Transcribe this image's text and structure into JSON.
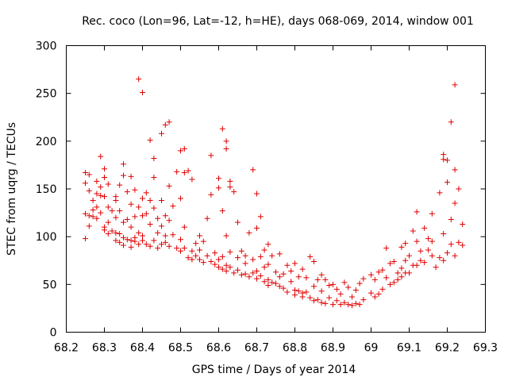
{
  "chart_data": {
    "type": "scatter",
    "title": "Rec. coco (Lon=96, Lat=-12, h=HE), days 068-069, 2014, window 001",
    "xlabel": "GPS time / Days of year 2014",
    "ylabel": "STEC from uqrg / TECUs",
    "xlim": [
      68.2,
      69.3
    ],
    "ylim": [
      0,
      300
    ],
    "x_ticks": [
      68.2,
      68.3,
      68.4,
      68.5,
      68.6,
      68.7,
      68.8,
      68.9,
      69.0,
      69.1,
      69.2,
      69.3
    ],
    "x_tick_labels": [
      "68.2",
      "68.3",
      "68.4",
      "68.5",
      "68.6",
      "68.7",
      "68.8",
      "68.9",
      "69",
      "69.1",
      "69.2",
      "69.3"
    ],
    "y_ticks": [
      0,
      50,
      100,
      150,
      200,
      250,
      300
    ],
    "y_tick_labels": [
      "0",
      "50",
      "100",
      "150",
      "200",
      "250",
      "300"
    ],
    "grid": false,
    "marker": "+",
    "color": "#e00000",
    "series": [
      {
        "name": "STEC",
        "points": [
          [
            68.25,
            167
          ],
          [
            68.25,
            156
          ],
          [
            68.25,
            124
          ],
          [
            68.25,
            98
          ],
          [
            68.26,
            165
          ],
          [
            68.26,
            148
          ],
          [
            68.26,
            122
          ],
          [
            68.26,
            111
          ],
          [
            68.27,
            138
          ],
          [
            68.27,
            128
          ],
          [
            68.27,
            121
          ],
          [
            68.28,
            158
          ],
          [
            68.28,
            145
          ],
          [
            68.28,
            131
          ],
          [
            68.28,
            119
          ],
          [
            68.29,
            184
          ],
          [
            68.29,
            152
          ],
          [
            68.29,
            143
          ],
          [
            68.29,
            125
          ],
          [
            68.3,
            171
          ],
          [
            68.3,
            162
          ],
          [
            68.3,
            142
          ],
          [
            68.3,
            110
          ],
          [
            68.3,
            107
          ],
          [
            68.31,
            155
          ],
          [
            68.31,
            131
          ],
          [
            68.31,
            115
          ],
          [
            68.31,
            103
          ],
          [
            68.32,
            127
          ],
          [
            68.32,
            106
          ],
          [
            68.33,
            142
          ],
          [
            68.33,
            138
          ],
          [
            68.33,
            120
          ],
          [
            68.33,
            104
          ],
          [
            68.33,
            96
          ],
          [
            68.34,
            154
          ],
          [
            68.34,
            127
          ],
          [
            68.34,
            103
          ],
          [
            68.34,
            94
          ],
          [
            68.35,
            176
          ],
          [
            68.35,
            164
          ],
          [
            68.35,
            115
          ],
          [
            68.35,
            99
          ],
          [
            68.35,
            91
          ],
          [
            68.36,
            147
          ],
          [
            68.36,
            118
          ],
          [
            68.36,
            97
          ],
          [
            68.37,
            163
          ],
          [
            68.37,
            134
          ],
          [
            68.37,
            110
          ],
          [
            68.37,
            96
          ],
          [
            68.37,
            89
          ],
          [
            68.38,
            149
          ],
          [
            68.38,
            121
          ],
          [
            68.38,
            99
          ],
          [
            68.38,
            95
          ],
          [
            68.39,
            265
          ],
          [
            68.39,
            131
          ],
          [
            68.39,
            104
          ],
          [
            68.39,
            92
          ],
          [
            68.4,
            251
          ],
          [
            68.4,
            140
          ],
          [
            68.4,
            122
          ],
          [
            68.4,
            101
          ],
          [
            68.4,
            96
          ],
          [
            68.41,
            146
          ],
          [
            68.41,
            124
          ],
          [
            68.41,
            92
          ],
          [
            68.42,
            201
          ],
          [
            68.42,
            138
          ],
          [
            68.42,
            113
          ],
          [
            68.42,
            90
          ],
          [
            68.43,
            182
          ],
          [
            68.43,
            162
          ],
          [
            68.43,
            130
          ],
          [
            68.43,
            96
          ],
          [
            68.44,
            119
          ],
          [
            68.44,
            104
          ],
          [
            68.44,
            88
          ],
          [
            68.45,
            208
          ],
          [
            68.45,
            138
          ],
          [
            68.45,
            111
          ],
          [
            68.45,
            92
          ],
          [
            68.46,
            217
          ],
          [
            68.46,
            122
          ],
          [
            68.46,
            101
          ],
          [
            68.46,
            94
          ],
          [
            68.47,
            220
          ],
          [
            68.47,
            153
          ],
          [
            68.47,
            117
          ],
          [
            68.47,
            90
          ],
          [
            68.48,
            132
          ],
          [
            68.48,
            102
          ],
          [
            68.49,
            168
          ],
          [
            68.49,
            88
          ],
          [
            68.5,
            190
          ],
          [
            68.5,
            140
          ],
          [
            68.5,
            97
          ],
          [
            68.5,
            85
          ],
          [
            68.51,
            192
          ],
          [
            68.51,
            167
          ],
          [
            68.51,
            110
          ],
          [
            68.51,
            88
          ],
          [
            68.52,
            169
          ],
          [
            68.52,
            78
          ],
          [
            68.53,
            160
          ],
          [
            68.53,
            85
          ],
          [
            68.53,
            76
          ],
          [
            68.54,
            93
          ],
          [
            68.54,
            80
          ],
          [
            68.55,
            101
          ],
          [
            68.55,
            86
          ],
          [
            68.55,
            76
          ],
          [
            68.56,
            95
          ],
          [
            68.56,
            73
          ],
          [
            68.57,
            119
          ],
          [
            68.57,
            80
          ],
          [
            68.58,
            185
          ],
          [
            68.58,
            144
          ],
          [
            68.58,
            74
          ],
          [
            68.59,
            83
          ],
          [
            68.59,
            71
          ],
          [
            68.6,
            161
          ],
          [
            68.6,
            151
          ],
          [
            68.6,
            76
          ],
          [
            68.6,
            68
          ],
          [
            68.61,
            213
          ],
          [
            68.61,
            127
          ],
          [
            68.61,
            79
          ],
          [
            68.61,
            66
          ],
          [
            68.62,
            200
          ],
          [
            68.62,
            192
          ],
          [
            68.62,
            101
          ],
          [
            68.62,
            70
          ],
          [
            68.62,
            64
          ],
          [
            68.63,
            158
          ],
          [
            68.63,
            152
          ],
          [
            68.63,
            84
          ],
          [
            68.63,
            68
          ],
          [
            68.64,
            147
          ],
          [
            68.64,
            62
          ],
          [
            68.65,
            115
          ],
          [
            68.65,
            78
          ],
          [
            68.65,
            65
          ],
          [
            68.66,
            85
          ],
          [
            68.66,
            60
          ],
          [
            68.67,
            80
          ],
          [
            68.67,
            72
          ],
          [
            68.67,
            61
          ],
          [
            68.68,
            104
          ],
          [
            68.68,
            58
          ],
          [
            68.69,
            170
          ],
          [
            68.69,
            76
          ],
          [
            68.69,
            62
          ],
          [
            68.7,
            109
          ],
          [
            68.7,
            145
          ],
          [
            68.7,
            64
          ],
          [
            68.7,
            56
          ],
          [
            68.71,
            121
          ],
          [
            68.71,
            79
          ],
          [
            68.71,
            59
          ],
          [
            68.72,
            86
          ],
          [
            68.72,
            68
          ],
          [
            68.72,
            53
          ],
          [
            68.73,
            92
          ],
          [
            68.73,
            71
          ],
          [
            68.73,
            55
          ],
          [
            68.73,
            49
          ],
          [
            68.74,
            80
          ],
          [
            68.74,
            52
          ],
          [
            68.75,
            63
          ],
          [
            68.75,
            51
          ],
          [
            68.76,
            82
          ],
          [
            68.76,
            58
          ],
          [
            68.76,
            48
          ],
          [
            68.77,
            61
          ],
          [
            68.77,
            46
          ],
          [
            68.78,
            70
          ],
          [
            68.78,
            42
          ],
          [
            68.79,
            64
          ],
          [
            68.79,
            53
          ],
          [
            68.8,
            72
          ],
          [
            68.8,
            44
          ],
          [
            68.8,
            39
          ],
          [
            68.81,
            58
          ],
          [
            68.81,
            43
          ],
          [
            68.82,
            66
          ],
          [
            68.82,
            41
          ],
          [
            68.82,
            37
          ],
          [
            68.83,
            57
          ],
          [
            68.83,
            42
          ],
          [
            68.84,
            79
          ],
          [
            68.84,
            36
          ],
          [
            68.85,
            74
          ],
          [
            68.85,
            48
          ],
          [
            68.85,
            33
          ],
          [
            68.86,
            55
          ],
          [
            68.86,
            34
          ],
          [
            68.87,
            60
          ],
          [
            68.87,
            43
          ],
          [
            68.87,
            31
          ],
          [
            68.88,
            55
          ],
          [
            68.88,
            30
          ],
          [
            68.89,
            49
          ],
          [
            68.89,
            36
          ],
          [
            68.9,
            50
          ],
          [
            68.9,
            29
          ],
          [
            68.91,
            45
          ],
          [
            68.91,
            33
          ],
          [
            68.92,
            40
          ],
          [
            68.92,
            29
          ],
          [
            68.93,
            52
          ],
          [
            68.93,
            31
          ],
          [
            68.94,
            47
          ],
          [
            68.94,
            29
          ],
          [
            68.95,
            37
          ],
          [
            68.95,
            28
          ],
          [
            68.96,
            44
          ],
          [
            68.96,
            30
          ],
          [
            68.97,
            51
          ],
          [
            68.97,
            29
          ],
          [
            68.98,
            56
          ],
          [
            68.98,
            34
          ],
          [
            69.0,
            60
          ],
          [
            69.0,
            41
          ],
          [
            69.01,
            55
          ],
          [
            69.01,
            37
          ],
          [
            69.02,
            63
          ],
          [
            69.02,
            40
          ],
          [
            69.03,
            65
          ],
          [
            69.03,
            45
          ],
          [
            69.04,
            88
          ],
          [
            69.04,
            57
          ],
          [
            69.05,
            72
          ],
          [
            69.05,
            50
          ],
          [
            69.06,
            74
          ],
          [
            69.06,
            52
          ],
          [
            69.07,
            62
          ],
          [
            69.07,
            55
          ],
          [
            69.08,
            89
          ],
          [
            69.08,
            67
          ],
          [
            69.08,
            58
          ],
          [
            69.09,
            93
          ],
          [
            69.09,
            75
          ],
          [
            69.09,
            62
          ],
          [
            69.1,
            80
          ],
          [
            69.1,
            62
          ],
          [
            69.11,
            106
          ],
          [
            69.11,
            70
          ],
          [
            69.12,
            126
          ],
          [
            69.12,
            95
          ],
          [
            69.12,
            70
          ],
          [
            69.13,
            85
          ],
          [
            69.13,
            75
          ],
          [
            69.14,
            109
          ],
          [
            69.14,
            73
          ],
          [
            69.15,
            98
          ],
          [
            69.15,
            86
          ],
          [
            69.16,
            124
          ],
          [
            69.16,
            95
          ],
          [
            69.16,
            80
          ],
          [
            69.17,
            68
          ],
          [
            69.18,
            146
          ],
          [
            69.18,
            78
          ],
          [
            69.19,
            186
          ],
          [
            69.19,
            181
          ],
          [
            69.19,
            103
          ],
          [
            69.19,
            75
          ],
          [
            69.2,
            180
          ],
          [
            69.2,
            157
          ],
          [
            69.2,
            83
          ],
          [
            69.21,
            220
          ],
          [
            69.21,
            118
          ],
          [
            69.21,
            92
          ],
          [
            69.22,
            259
          ],
          [
            69.22,
            170
          ],
          [
            69.22,
            135
          ],
          [
            69.22,
            80
          ],
          [
            69.23,
            150
          ],
          [
            69.23,
            94
          ],
          [
            69.24,
            113
          ],
          [
            69.24,
            91
          ]
        ]
      }
    ]
  }
}
